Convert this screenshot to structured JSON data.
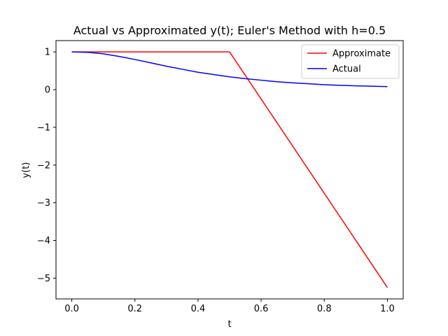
{
  "chart_data": {
    "type": "line",
    "title": "Actual vs Approximated y(t); Euler's Method with h=0.5",
    "xlabel": "t",
    "ylabel": "y(t)",
    "xlim": [
      -0.05,
      1.05
    ],
    "ylim": [
      -5.55,
      1.3
    ],
    "xticks": [
      0.0,
      0.2,
      0.4,
      0.6,
      0.8,
      1.0
    ],
    "xtick_labels": [
      "0.0",
      "0.2",
      "0.4",
      "0.6",
      "0.8",
      "1.0"
    ],
    "yticks": [
      1,
      0,
      -1,
      -2,
      -3,
      -4,
      -5
    ],
    "ytick_labels": [
      "1",
      "0",
      "−1",
      "−2",
      "−3",
      "−4",
      "−5"
    ],
    "grid": false,
    "legend_position": "top-right",
    "series": [
      {
        "name": "Approximate",
        "color": "#ff0000",
        "x": [
          0.0,
          0.5,
          1.0
        ],
        "y": [
          1.0,
          1.0,
          -5.25
        ]
      },
      {
        "name": "Actual",
        "color": "#0000ff",
        "x": [
          0.0,
          0.05,
          0.1,
          0.15,
          0.2,
          0.25,
          0.3,
          0.35,
          0.4,
          0.45,
          0.5,
          0.55,
          0.6,
          0.65,
          0.7,
          0.75,
          0.8,
          0.85,
          0.9,
          0.95,
          1.0
        ],
        "y": [
          1.0,
          0.99,
          0.95,
          0.88,
          0.8,
          0.71,
          0.62,
          0.54,
          0.46,
          0.4,
          0.34,
          0.29,
          0.25,
          0.21,
          0.18,
          0.155,
          0.13,
          0.115,
          0.1,
          0.09,
          0.08
        ]
      }
    ]
  }
}
